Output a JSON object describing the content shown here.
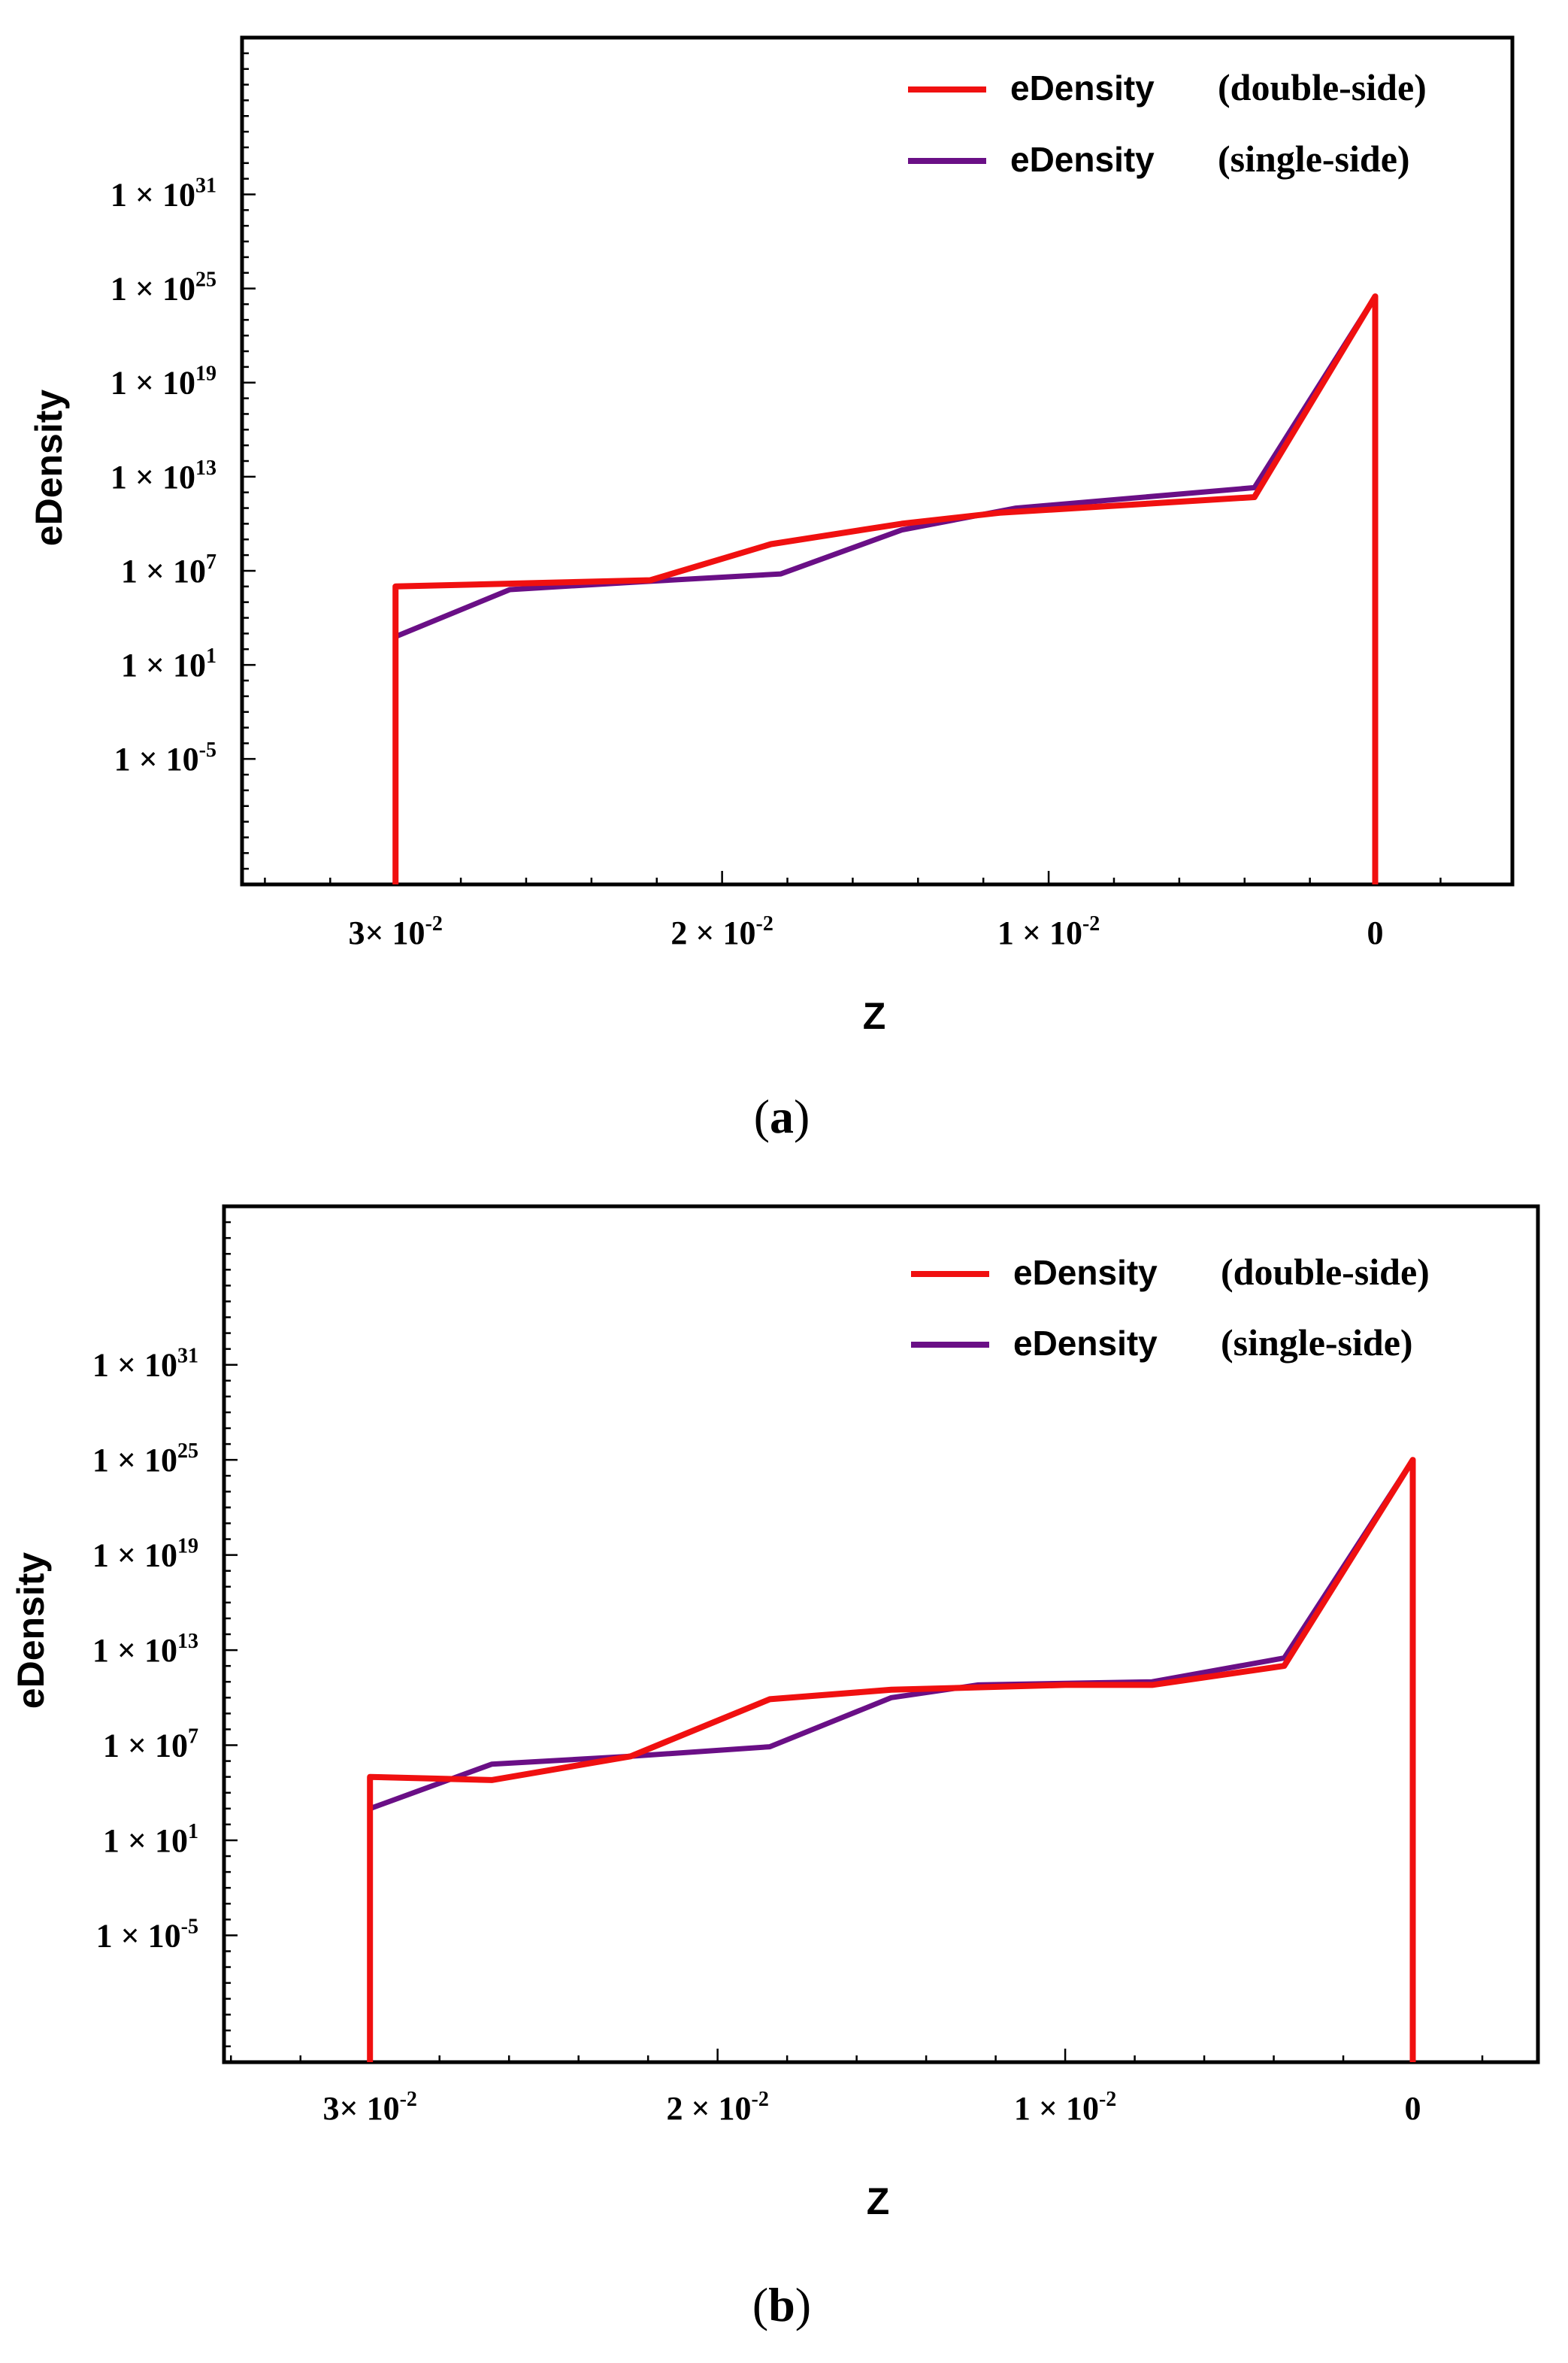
{
  "chart_data": [
    {
      "type": "line",
      "panel": "a",
      "title": "",
      "xlabel": "Z",
      "ylabel": "eDensity",
      "x_reversed": true,
      "y_scale": "log",
      "xlim": [
        0.0347,
        -0.0042
      ],
      "ylim_log10": [
        -13,
        41
      ],
      "x_ticks": [
        {
          "value": 0.03,
          "base": "3× 10",
          "exp": "-2"
        },
        {
          "value": 0.02,
          "base": "2 × 10",
          "exp": "-2"
        },
        {
          "value": 0.01,
          "base": "1 × 10",
          "exp": "-2"
        },
        {
          "value": 0,
          "base": "0",
          "exp": ""
        }
      ],
      "y_ticks": [
        {
          "log10": 31,
          "base": "1 × 10",
          "exp": "31"
        },
        {
          "log10": 25,
          "base": "1 × 10",
          "exp": "25"
        },
        {
          "log10": 19,
          "base": "1 × 10",
          "exp": "19"
        },
        {
          "log10": 13,
          "base": "1 × 10",
          "exp": "13"
        },
        {
          "log10": 7,
          "base": "1 × 10",
          "exp": "7"
        },
        {
          "log10": 1,
          "base": "1 × 10",
          "exp": "1"
        },
        {
          "log10": -5,
          "base": "1 × 10",
          "exp": "-5"
        }
      ],
      "series": [
        {
          "name": "eDensity (double-side)",
          "color": "#f01010",
          "points": [
            [
              0.03,
              -13
            ],
            [
              0.03,
              6.0
            ],
            [
              0.0222,
              6.4
            ],
            [
              0.0185,
              8.7
            ],
            [
              0.0145,
              10.0
            ],
            [
              0.0115,
              10.7
            ],
            [
              0.0037,
              11.7
            ],
            [
              0,
              24.5
            ],
            [
              0,
              -13
            ]
          ]
        },
        {
          "name": "eDensity (single-side)",
          "color": "#6a0f86",
          "points": [
            [
              0.03,
              2.8
            ],
            [
              0.0265,
              5.8
            ],
            [
              0.0225,
              6.3
            ],
            [
              0.0182,
              6.8
            ],
            [
              0.0145,
              9.6
            ],
            [
              0.011,
              11.0
            ],
            [
              0.0037,
              12.3
            ],
            [
              0,
              24.5
            ]
          ]
        }
      ],
      "legend": [
        {
          "label": "eDensity",
          "suffix": "(double-side)"
        },
        {
          "label": "eDensity",
          "suffix": "(single-side)"
        }
      ],
      "legend_position": "top-right",
      "caption_letter": "a"
    },
    {
      "type": "line",
      "panel": "b",
      "title": "",
      "xlabel": "Z",
      "ylabel": "eDensity",
      "x_reversed": true,
      "y_scale": "log",
      "xlim": [
        0.0342,
        -0.0036
      ],
      "ylim_log10": [
        -13,
        41
      ],
      "x_ticks": [
        {
          "value": 0.03,
          "base": "3× 10",
          "exp": "-2"
        },
        {
          "value": 0.02,
          "base": "2 × 10",
          "exp": "-2"
        },
        {
          "value": 0.01,
          "base": "1 × 10",
          "exp": "-2"
        },
        {
          "value": 0,
          "base": "0",
          "exp": ""
        }
      ],
      "y_ticks": [
        {
          "log10": 31,
          "base": "1 × 10",
          "exp": "31"
        },
        {
          "log10": 25,
          "base": "1 × 10",
          "exp": "25"
        },
        {
          "log10": 19,
          "base": "1 × 10",
          "exp": "19"
        },
        {
          "log10": 13,
          "base": "1 × 10",
          "exp": "13"
        },
        {
          "log10": 7,
          "base": "1 × 10",
          "exp": "7"
        },
        {
          "log10": 1,
          "base": "1 × 10",
          "exp": "1"
        },
        {
          "log10": -5,
          "base": "1 × 10",
          "exp": "-5"
        }
      ],
      "series": [
        {
          "name": "eDensity (double-side)",
          "color": "#f01010",
          "points": [
            [
              0.03,
              -13
            ],
            [
              0.03,
              5.0
            ],
            [
              0.0265,
              4.8
            ],
            [
              0.0225,
              6.3
            ],
            [
              0.0185,
              9.9
            ],
            [
              0.015,
              10.5
            ],
            [
              0.01,
              10.8
            ],
            [
              0.0075,
              10.8
            ],
            [
              0.0037,
              12.0
            ],
            [
              0,
              25.0
            ],
            [
              0,
              -13
            ]
          ]
        },
        {
          "name": "eDensity (single-side)",
          "color": "#6a0f86",
          "points": [
            [
              0.03,
              3.0
            ],
            [
              0.0265,
              5.8
            ],
            [
              0.0225,
              6.3
            ],
            [
              0.0185,
              6.9
            ],
            [
              0.015,
              10.0
            ],
            [
              0.0125,
              10.8
            ],
            [
              0.0075,
              11.0
            ],
            [
              0.0037,
              12.5
            ],
            [
              0,
              25.0
            ]
          ]
        }
      ],
      "legend": [
        {
          "label": "eDensity",
          "suffix": "(double-side)"
        },
        {
          "label": "eDensity",
          "suffix": "(single-side)"
        }
      ],
      "legend_position": "top-right",
      "caption_letter": "b"
    }
  ]
}
